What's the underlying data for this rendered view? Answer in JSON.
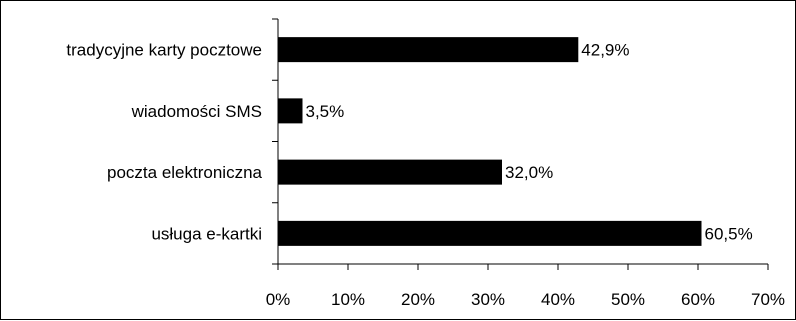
{
  "chart_data": {
    "type": "bar",
    "orientation": "horizontal",
    "categories": [
      "tradycyjne karty pocztowe",
      "wiadomości SMS",
      "poczta elektroniczna",
      "usługa e-kartki"
    ],
    "values": [
      42.9,
      3.5,
      32.0,
      60.5
    ],
    "value_labels": [
      "42,9%",
      "3,5%",
      "32,0%",
      "60,5%"
    ],
    "xlim": [
      0,
      70
    ],
    "x_ticks": [
      0,
      10,
      20,
      30,
      40,
      50,
      60,
      70
    ],
    "x_tick_labels": [
      "0%",
      "10%",
      "20%",
      "30%",
      "40%",
      "50%",
      "60%",
      "70%"
    ],
    "title": "",
    "xlabel": "",
    "ylabel": "",
    "grid": false,
    "legend": "none",
    "bar_color": "#000000"
  }
}
